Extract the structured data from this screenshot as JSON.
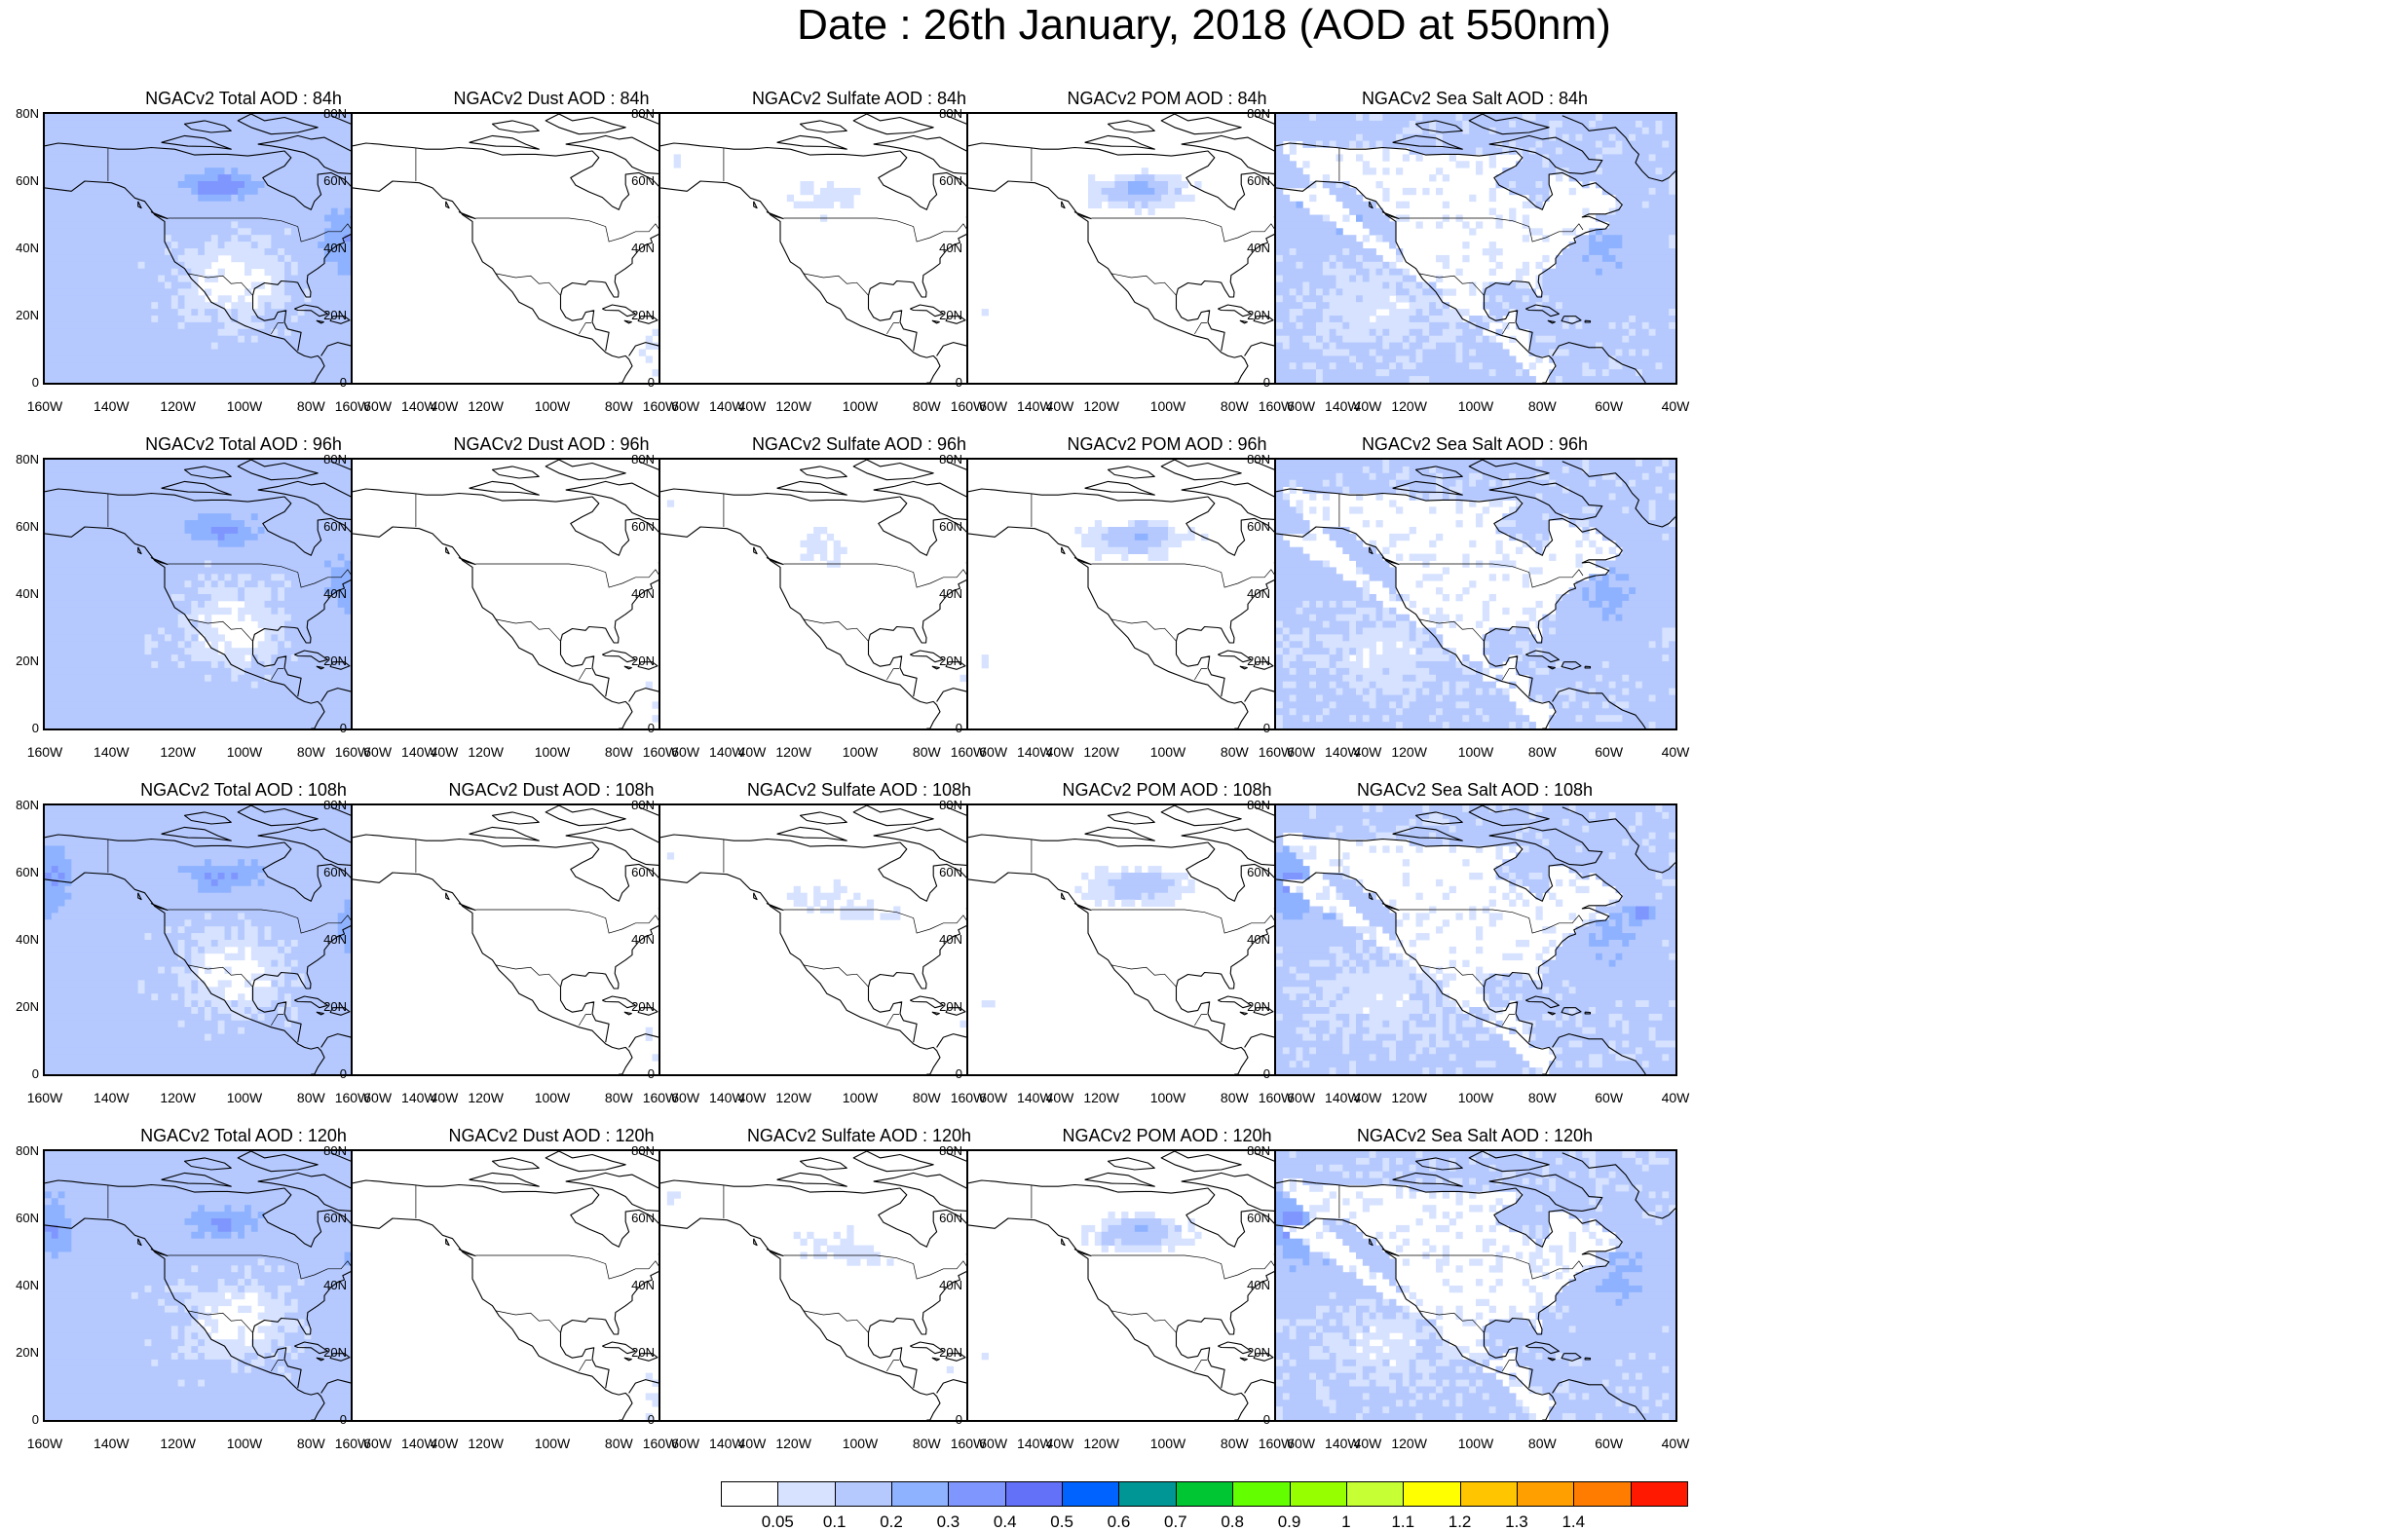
{
  "title": "Date : 26th January, 2018 (AOD at 550nm)",
  "axes": {
    "y_ticks": [
      "80N",
      "60N",
      "40N",
      "20N",
      "0"
    ],
    "x_ticks": [
      "160W",
      "140W",
      "120W",
      "100W",
      "80W",
      "60W",
      "40W"
    ]
  },
  "rows": [
    {
      "hour": "84h",
      "panels": [
        {
          "species": "total",
          "title": "NGACv2 Total AOD : 84h"
        },
        {
          "species": "dust",
          "title": "NGACv2 Dust AOD : 84h"
        },
        {
          "species": "sulfate",
          "title": "NGACv2 Sulfate AOD : 84h"
        },
        {
          "species": "pom",
          "title": "NGACv2 POM AOD : 84h"
        },
        {
          "species": "seasalt",
          "title": "NGACv2 Sea Salt AOD : 84h"
        }
      ]
    },
    {
      "hour": "96h",
      "panels": [
        {
          "species": "total",
          "title": "NGACv2 Total AOD : 96h"
        },
        {
          "species": "dust",
          "title": "NGACv2 Dust AOD : 96h"
        },
        {
          "species": "sulfate",
          "title": "NGACv2 Sulfate AOD : 96h"
        },
        {
          "species": "pom",
          "title": "NGACv2 POM AOD : 96h"
        },
        {
          "species": "seasalt",
          "title": "NGACv2 Sea Salt AOD : 96h"
        }
      ]
    },
    {
      "hour": "108h",
      "panels": [
        {
          "species": "total",
          "title": "NGACv2 Total AOD : 108h"
        },
        {
          "species": "dust",
          "title": "NGACv2 Dust AOD : 108h"
        },
        {
          "species": "sulfate",
          "title": "NGACv2 Sulfate AOD : 108h"
        },
        {
          "species": "pom",
          "title": "NGACv2 POM AOD : 108h"
        },
        {
          "species": "seasalt",
          "title": "NGACv2 Sea Salt AOD : 108h"
        }
      ]
    },
    {
      "hour": "120h",
      "panels": [
        {
          "species": "total",
          "title": "NGACv2 Total AOD : 120h"
        },
        {
          "species": "dust",
          "title": "NGACv2 Dust AOD : 120h"
        },
        {
          "species": "sulfate",
          "title": "NGACv2 Sulfate AOD : 120h"
        },
        {
          "species": "pom",
          "title": "NGACv2 POM AOD : 120h"
        },
        {
          "species": "seasalt",
          "title": "NGACv2 Sea Salt  AOD : 120h"
        }
      ]
    }
  ],
  "colorbar": {
    "labels": [
      "0.05",
      "0.1",
      "0.2",
      "0.3",
      "0.4",
      "0.5",
      "0.6",
      "0.7",
      "0.8",
      "0.9",
      "1",
      "1.1",
      "1.2",
      "1.3",
      "1.4"
    ],
    "colors": [
      "#ffffff",
      "#d6e2ff",
      "#b5c9ff",
      "#8eb2ff",
      "#7f96ff",
      "#6370f8",
      "#0063ff",
      "#009696",
      "#00c633",
      "#63ff00",
      "#96ff00",
      "#c6ff33",
      "#ffff00",
      "#ffc600",
      "#ffa000",
      "#ff7c00",
      "#ff1900"
    ]
  }
}
